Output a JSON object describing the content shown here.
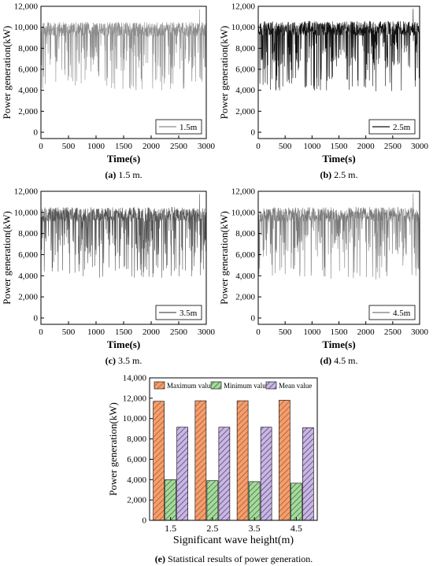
{
  "chart_data": [
    {
      "panel": "a",
      "type": "line",
      "caption_letter": "(a)",
      "caption_text": " 1.5 m.",
      "xlabel": "Time(s)",
      "ylabel": "Power generation(kW)",
      "xlim": [
        0,
        3000
      ],
      "ylim": [
        -600,
        12000
      ],
      "xticks": [
        0,
        500,
        1000,
        1500,
        2000,
        2500,
        3000
      ],
      "yticks": [
        0,
        2000,
        4000,
        6000,
        8000,
        10000,
        12000
      ],
      "ytick_labels": [
        "0",
        "2,000",
        "4,000",
        "6,000",
        "8,000",
        "10,000",
        "12,000"
      ],
      "legend": "1.5m",
      "legend_position": "bottom-right",
      "line_color": "#8c8c8c",
      "baseline_kW": 9800,
      "max_kW": 11700,
      "min_kW": 4000,
      "seed": 11
    },
    {
      "panel": "b",
      "type": "line",
      "caption_letter": "(b)",
      "caption_text": " 2.5 m.",
      "xlabel": "Time(s)",
      "ylabel": "Power generation(kW)",
      "xlim": [
        0,
        3000
      ],
      "ylim": [
        -600,
        12000
      ],
      "xticks": [
        0,
        500,
        1000,
        1500,
        2000,
        2500,
        3000
      ],
      "yticks": [
        0,
        2000,
        4000,
        6000,
        8000,
        10000,
        12000
      ],
      "ytick_labels": [
        "0",
        "2,000",
        "4,000",
        "6,000",
        "8,000",
        "10,000",
        "12,000"
      ],
      "legend": "2.5m",
      "legend_position": "bottom-right",
      "line_color": "#111111",
      "baseline_kW": 9900,
      "max_kW": 11750,
      "min_kW": 3900,
      "seed": 23
    },
    {
      "panel": "c",
      "type": "line",
      "caption_letter": "(c)",
      "caption_text": " 3.5 m.",
      "xlabel": "Time(s)",
      "ylabel": "Power generation(kW)",
      "xlim": [
        0,
        3000
      ],
      "ylim": [
        -600,
        12000
      ],
      "xticks": [
        0,
        500,
        1000,
        1500,
        2000,
        2500,
        3000
      ],
      "yticks": [
        0,
        2000,
        4000,
        6000,
        8000,
        10000,
        12000
      ],
      "ytick_labels": [
        "0",
        "2,000",
        "4,000",
        "6,000",
        "8,000",
        "10,000",
        "12,000"
      ],
      "legend": "3.5m",
      "legend_position": "bottom-right",
      "line_color": "#555555",
      "baseline_kW": 9800,
      "max_kW": 11750,
      "min_kW": 3800,
      "seed": 37
    },
    {
      "panel": "d",
      "type": "line",
      "caption_letter": "(d)",
      "caption_text": " 4.5 m.",
      "xlabel": "Time(s)",
      "ylabel": "Power generation(kW)",
      "xlim": [
        0,
        3000
      ],
      "ylim": [
        -600,
        12000
      ],
      "xticks": [
        0,
        500,
        1000,
        1500,
        2000,
        2500,
        3000
      ],
      "yticks": [
        0,
        2000,
        4000,
        6000,
        8000,
        10000,
        12000
      ],
      "ytick_labels": [
        "0",
        "2,000",
        "4,000",
        "6,000",
        "8,000",
        "10,000",
        "12,000"
      ],
      "legend": "4.5m",
      "legend_position": "bottom-right",
      "line_color": "#7a7a7a",
      "baseline_kW": 9800,
      "max_kW": 11800,
      "min_kW": 3650,
      "seed": 53
    },
    {
      "panel": "e",
      "type": "bar",
      "caption_letter": "(e)",
      "caption_text": " Statistical results of power generation.",
      "xlabel": "Significant wave height(m)",
      "ylabel": "Power generation(kW)",
      "categories": [
        "1.5",
        "2.5",
        "3.5",
        "4.5"
      ],
      "ylim": [
        0,
        14000
      ],
      "yticks": [
        0,
        2000,
        4000,
        6000,
        8000,
        10000,
        12000,
        14000
      ],
      "ytick_labels": [
        "0",
        "2,000",
        "4,000",
        "6,000",
        "8,000",
        "10,000",
        "12,000",
        "14,000"
      ],
      "legend_position": "top",
      "series": [
        {
          "name": "Maximum value",
          "values": [
            11700,
            11750,
            11750,
            11800
          ],
          "color": "#f0a070",
          "hatch": "#c0501c"
        },
        {
          "name": "Minimum value",
          "values": [
            4000,
            3900,
            3800,
            3650
          ],
          "color": "#a8d8a0",
          "hatch": "#2f7a2a"
        },
        {
          "name": "Mean value",
          "values": [
            9150,
            9150,
            9150,
            9100
          ],
          "color": "#c8b8e0",
          "hatch": "#5a3d8a"
        }
      ]
    }
  ]
}
